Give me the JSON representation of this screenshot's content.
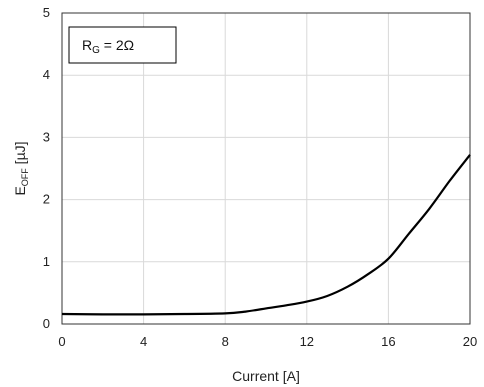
{
  "chart_data": {
    "type": "line",
    "xlabel": "Current [A]",
    "ylabel": {
      "main": "E",
      "sub": "OFF",
      "unit": " [µJ]"
    },
    "xlim": [
      0,
      20
    ],
    "ylim": [
      0,
      5
    ],
    "xticks": [
      0,
      4,
      8,
      12,
      16,
      20
    ],
    "yticks": [
      0,
      1,
      2,
      3,
      4,
      5
    ],
    "grid": true,
    "annotation": {
      "main": "R",
      "sub": "G",
      "rest": " = 2Ω",
      "placement": "top-left"
    },
    "series": [
      {
        "x": [
          0,
          2,
          4,
          6,
          8,
          9,
          10,
          11,
          12,
          13,
          14,
          15,
          16,
          17,
          18,
          19,
          20
        ],
        "y": [
          0.16,
          0.155,
          0.155,
          0.16,
          0.17,
          0.2,
          0.25,
          0.3,
          0.36,
          0.45,
          0.6,
          0.8,
          1.05,
          1.45,
          1.85,
          2.3,
          2.72
        ]
      }
    ]
  }
}
